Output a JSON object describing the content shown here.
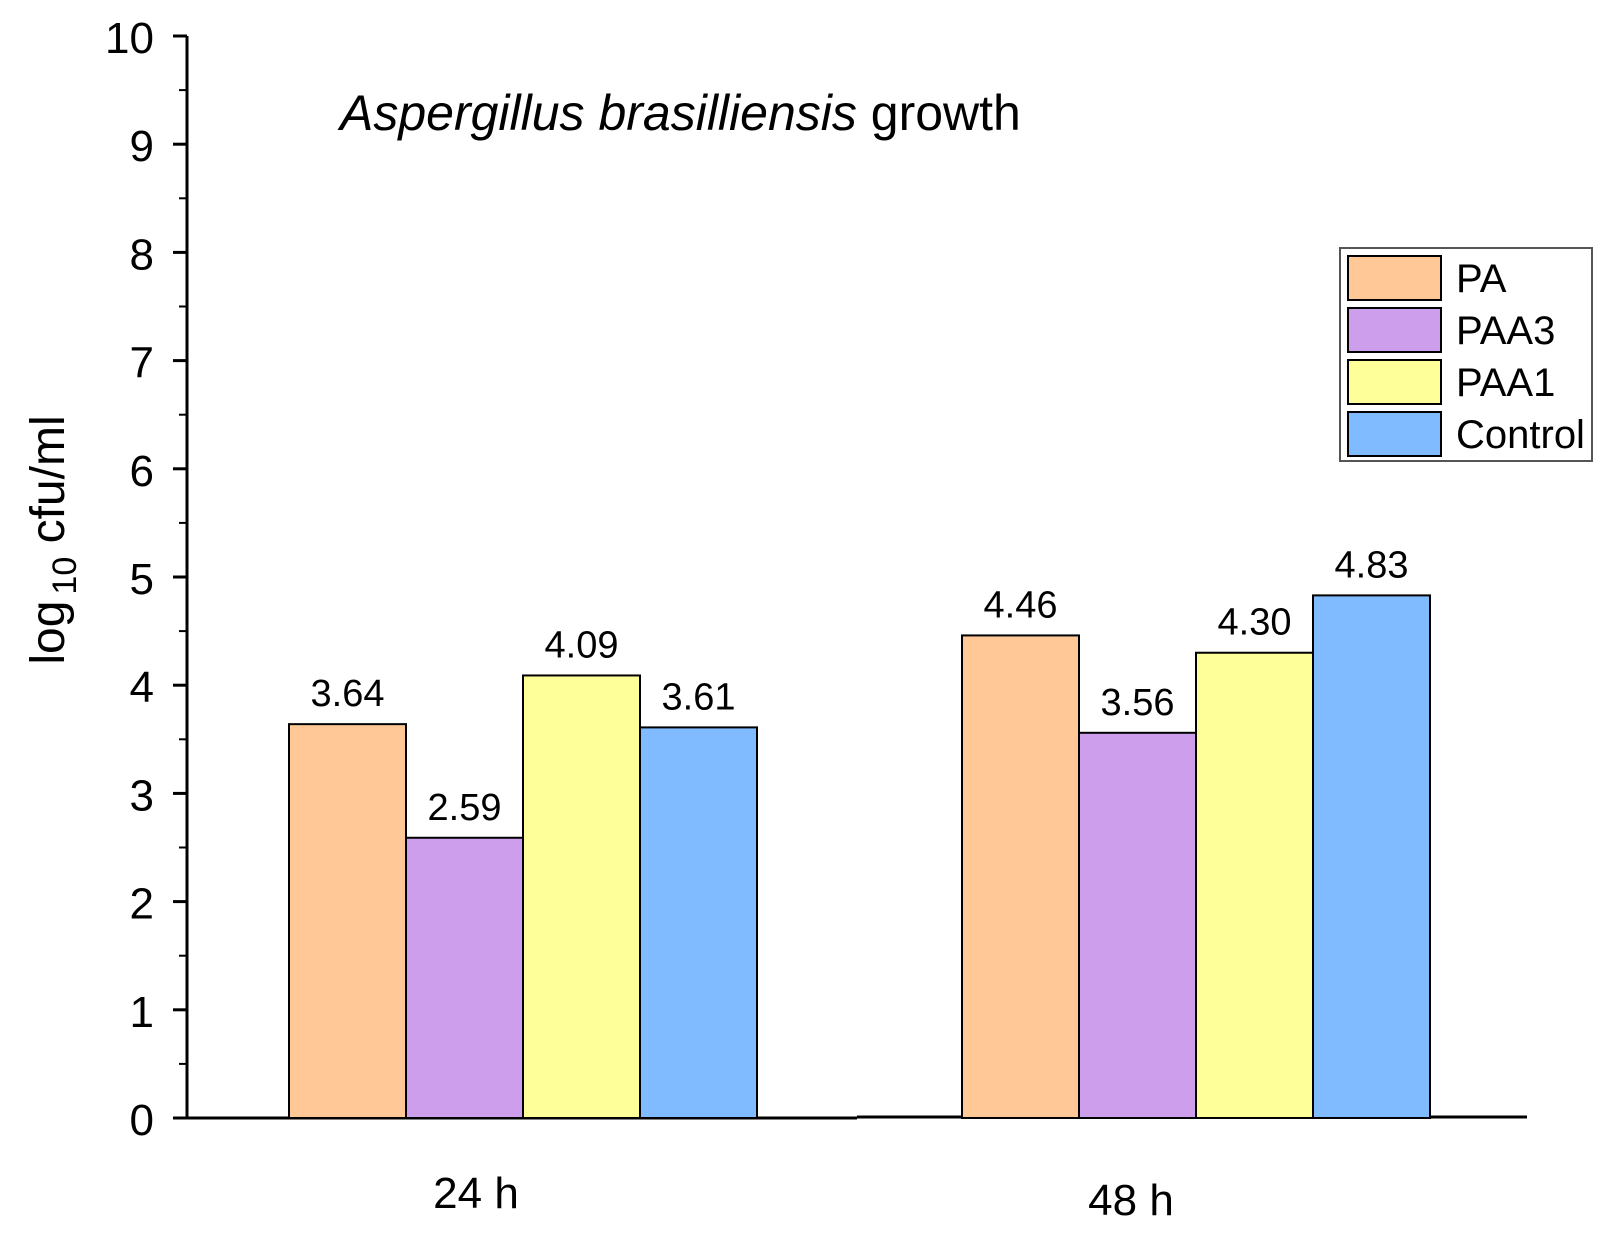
{
  "chart_data": {
    "type": "bar",
    "title_italic": "Aspergillus brasilliensis",
    "title_rest": " growth",
    "ylabel_main": "log",
    "ylabel_sub": "10",
    "ylabel_rest": " cfu/ml",
    "xlabel": "",
    "ylim": [
      0,
      10
    ],
    "yticks": [
      0,
      1,
      2,
      3,
      4,
      5,
      6,
      7,
      8,
      9,
      10
    ],
    "ytick_labels": [
      "0",
      "1",
      "2",
      "3",
      "4",
      "5",
      "6",
      "7",
      "8",
      "9",
      "10"
    ],
    "categories": [
      "24 h",
      "48 h"
    ],
    "series": [
      {
        "name": "PA",
        "color": "#ffc896",
        "values": [
          3.64,
          4.46
        ],
        "labels": [
          "3.64",
          "4.46"
        ]
      },
      {
        "name": "PAA3",
        "color": "#cc9eec",
        "values": [
          2.59,
          3.56
        ],
        "labels": [
          "2.59",
          "3.56"
        ]
      },
      {
        "name": "PAA1",
        "color": "#ffff99",
        "values": [
          4.09,
          4.3
        ],
        "labels": [
          "4.09",
          "4.30"
        ]
      },
      {
        "name": "Control",
        "color": "#80bbff",
        "values": [
          3.61,
          4.83
        ],
        "labels": [
          "3.61",
          "4.83"
        ]
      }
    ],
    "legend_position": "top-right",
    "grid": false
  }
}
